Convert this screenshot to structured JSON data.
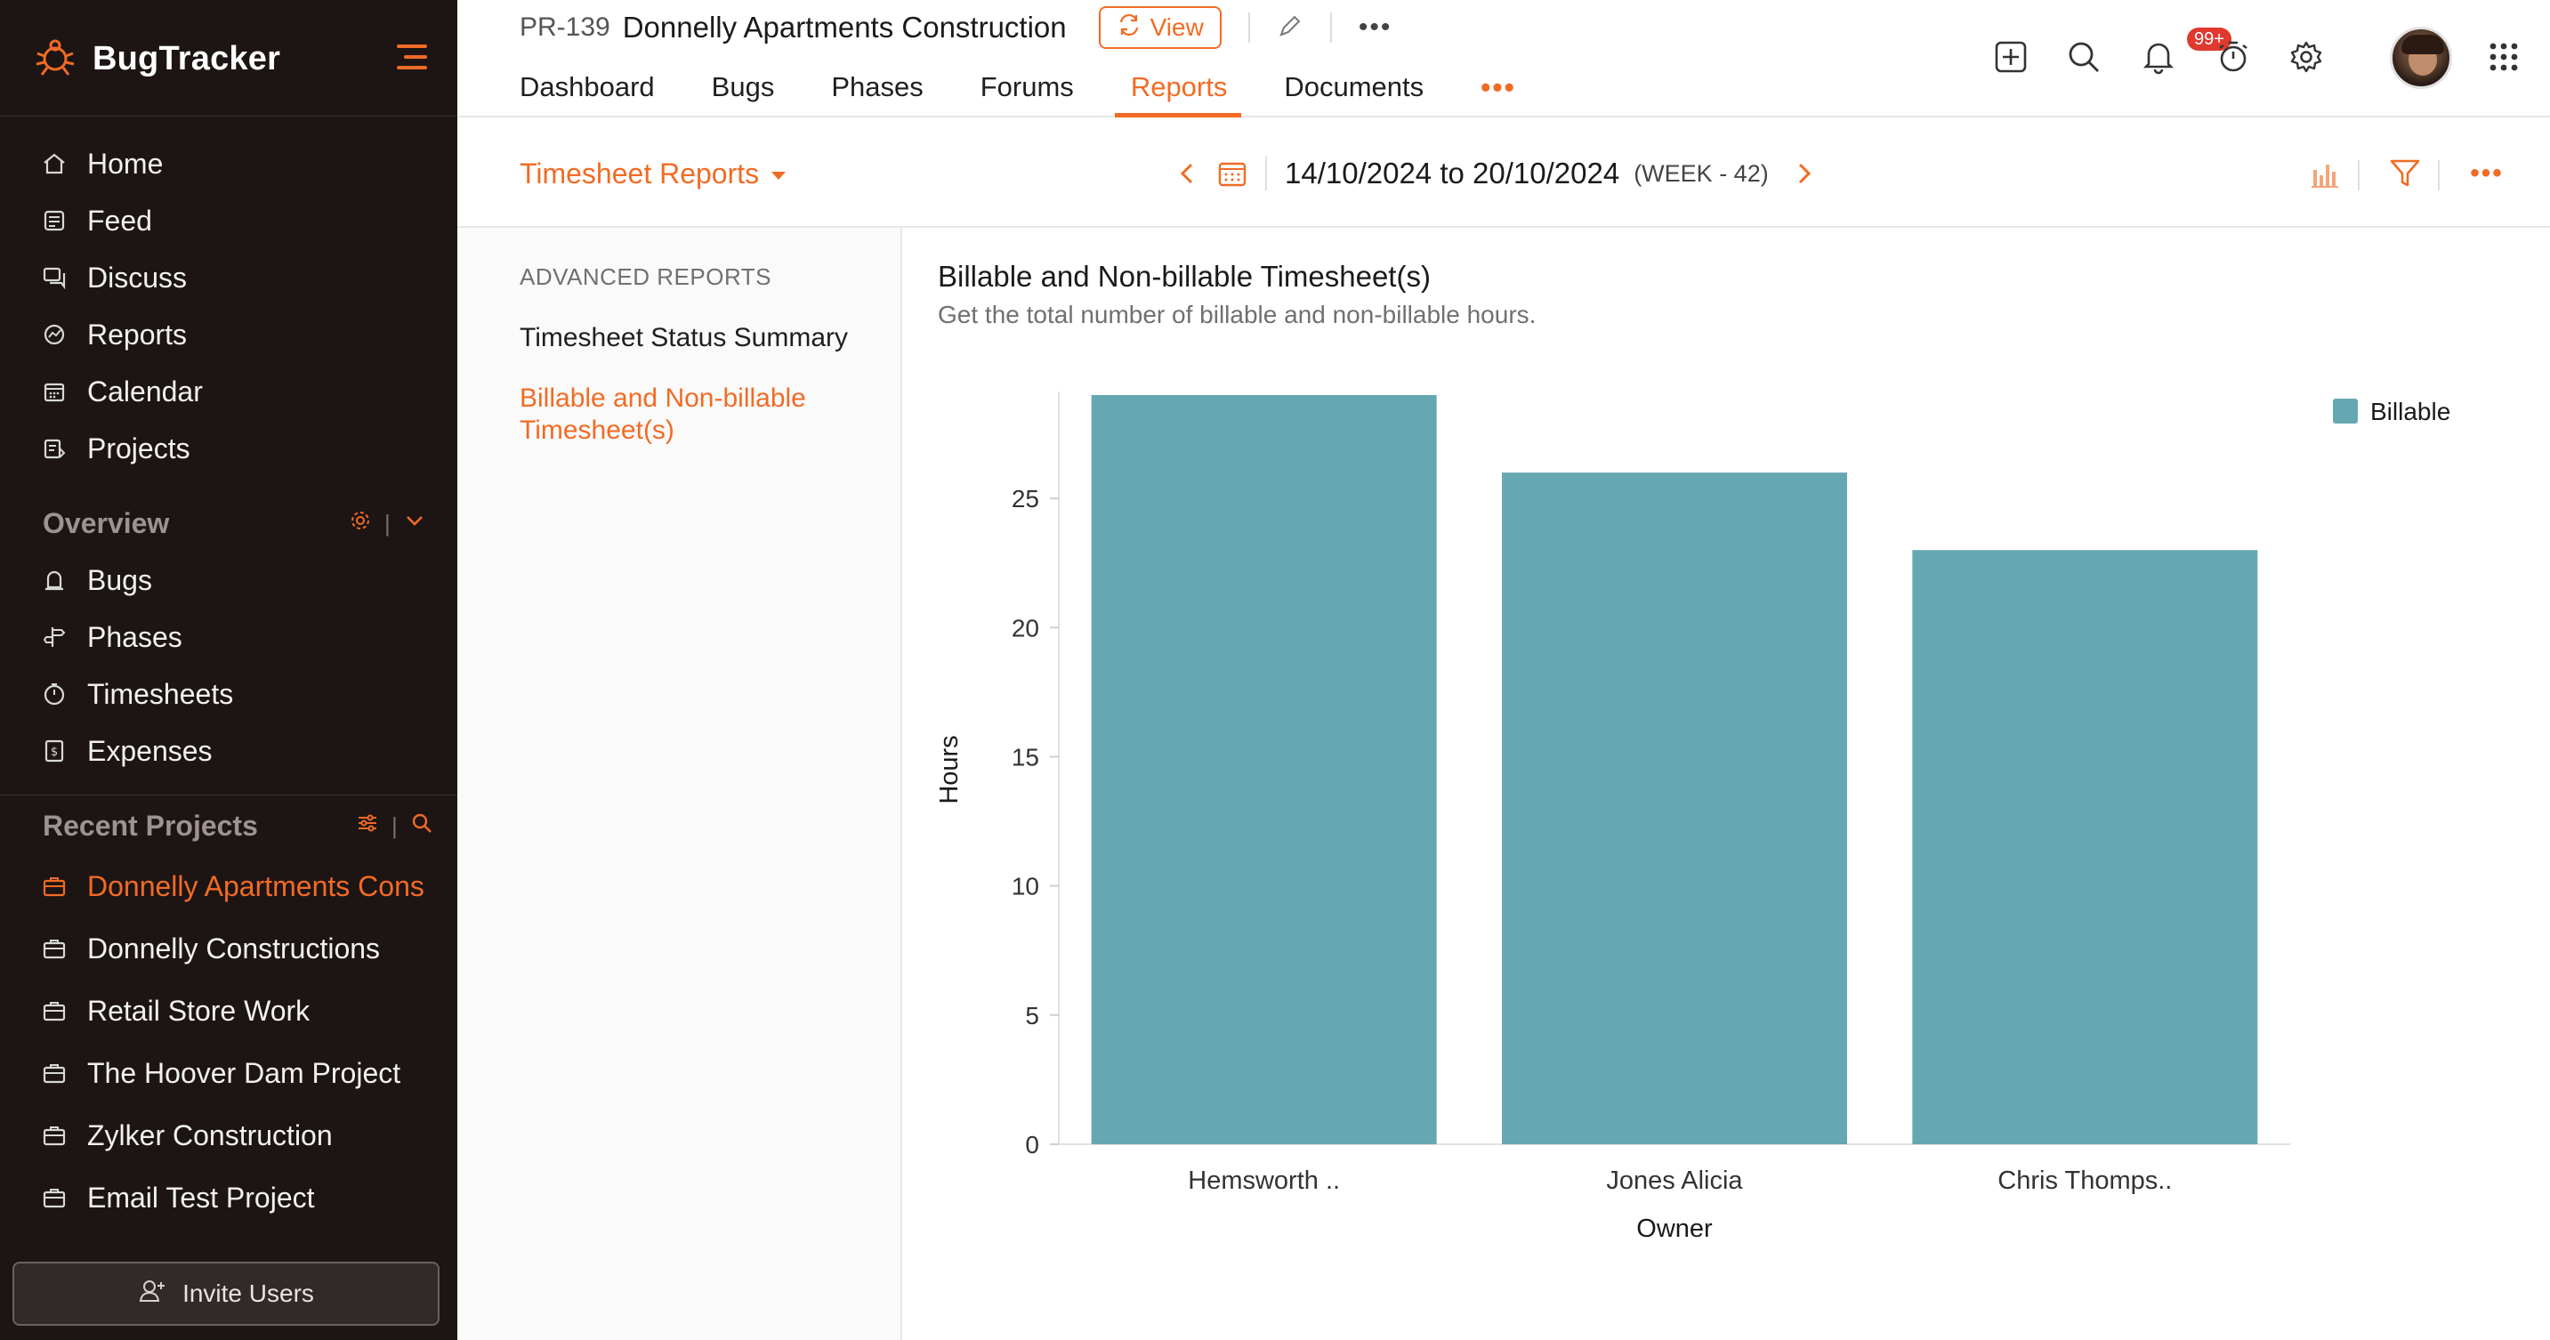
{
  "app": {
    "name": "BugTracker",
    "brand_color": "#f26b24"
  },
  "sidebar": {
    "nav": [
      {
        "label": "Home",
        "icon": "home-icon"
      },
      {
        "label": "Feed",
        "icon": "feed-icon"
      },
      {
        "label": "Discuss",
        "icon": "discuss-icon"
      },
      {
        "label": "Reports",
        "icon": "reports-icon"
      },
      {
        "label": "Calendar",
        "icon": "calendar-icon"
      },
      {
        "label": "Projects",
        "icon": "projects-icon"
      }
    ],
    "overview": {
      "title": "Overview",
      "items": [
        {
          "label": "Bugs",
          "icon": "bug-icon"
        },
        {
          "label": "Phases",
          "icon": "phases-icon"
        },
        {
          "label": "Timesheets",
          "icon": "timer-icon"
        },
        {
          "label": "Expenses",
          "icon": "expenses-icon"
        }
      ]
    },
    "recent": {
      "title": "Recent Projects",
      "items": [
        {
          "label": "Donnelly Apartments Cons",
          "active": true
        },
        {
          "label": "Donnelly Constructions",
          "active": false
        },
        {
          "label": "Retail Store Work",
          "active": false
        },
        {
          "label": "The Hoover Dam Project",
          "active": false
        },
        {
          "label": "Zylker Construction",
          "active": false
        },
        {
          "label": "Email Test Project",
          "active": false
        }
      ]
    },
    "invite_label": "Invite Users"
  },
  "header": {
    "project_id": "PR-139",
    "project_name": "Donnelly Apartments Construction",
    "view_label": "View",
    "tabs": [
      {
        "label": "Dashboard",
        "active": false
      },
      {
        "label": "Bugs",
        "active": false
      },
      {
        "label": "Phases",
        "active": false
      },
      {
        "label": "Forums",
        "active": false
      },
      {
        "label": "Reports",
        "active": true
      },
      {
        "label": "Documents",
        "active": false
      }
    ],
    "tab_more": "•••",
    "notification_badge": "99+"
  },
  "toolbar": {
    "report_type": "Timesheet Reports",
    "date_range": "14/10/2024 to 20/10/2024",
    "week": "(WEEK - 42)"
  },
  "left_panel": {
    "heading": "ADVANCED REPORTS",
    "items": [
      {
        "label": "Timesheet Status Summary",
        "active": false
      },
      {
        "label": "Billable and Non-billable Timesheet(s)",
        "active": true
      }
    ]
  },
  "report": {
    "title": "Billable and Non-billable Timesheet(s)",
    "subtitle": "Get the total number of billable and non-billable hours."
  },
  "chart_data": {
    "type": "bar",
    "categories": [
      "Hemsworth ..",
      "Jones Alicia",
      "Chris Thomps.."
    ],
    "series": [
      {
        "name": "Billable",
        "values": [
          29,
          26,
          23
        ],
        "color": "#66a8b2"
      }
    ],
    "xlabel": "Owner",
    "ylabel": "Hours",
    "yticks": [
      0,
      5,
      10,
      15,
      20,
      25
    ],
    "ylim": [
      0,
      29
    ],
    "legend": "top-right",
    "grid": false
  }
}
